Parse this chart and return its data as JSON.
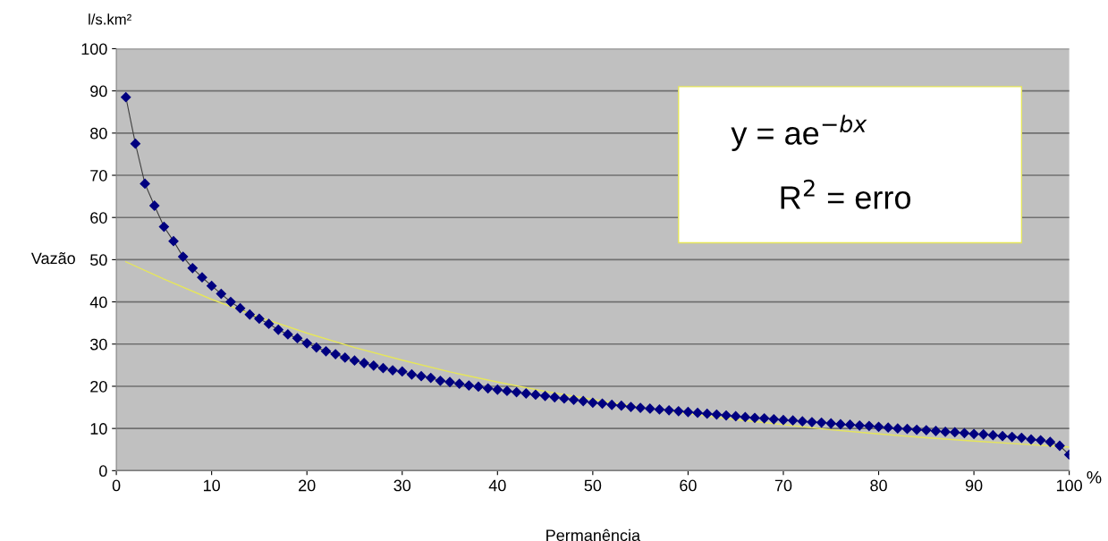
{
  "chart_data": {
    "type": "line",
    "ylabel": "Vazão",
    "xlabel": "Permanência",
    "annotations": [
      "l/s.km²",
      "%",
      "y = ae$^{−bx}$",
      "R$^{2}$ = erro"
    ],
    "xlim": [
      0,
      100
    ],
    "ylim": [
      0,
      100
    ],
    "xticks": [
      0,
      10,
      20,
      30,
      40,
      50,
      60,
      70,
      80,
      90,
      100
    ],
    "yticks": [
      0,
      10,
      20,
      30,
      40,
      50,
      60,
      70,
      80,
      90,
      100
    ],
    "grid": "y",
    "legend": false,
    "marker": "diamond",
    "line_style": "solid",
    "series": [
      {
        "color": "#000080",
        "x": [
          1,
          2,
          3,
          4,
          5,
          6,
          7,
          8,
          9,
          10,
          11,
          12,
          13,
          14,
          15,
          16,
          17,
          18,
          19,
          20,
          21,
          22,
          23,
          24,
          25,
          26,
          27,
          28,
          29,
          30,
          31,
          32,
          33,
          34,
          35,
          36,
          37,
          38,
          39,
          40,
          41,
          42,
          43,
          44,
          45,
          46,
          47,
          48,
          49,
          50,
          51,
          52,
          53,
          54,
          55,
          56,
          57,
          58,
          59,
          60,
          61,
          62,
          63,
          64,
          65,
          66,
          67,
          68,
          69,
          70,
          71,
          72,
          73,
          74,
          75,
          76,
          77,
          78,
          79,
          80,
          81,
          82,
          83,
          84,
          85,
          86,
          87,
          88,
          89,
          90,
          91,
          92,
          93,
          94,
          95,
          96,
          97,
          98,
          99,
          100
        ],
        "values": [
          88.5,
          77.5,
          68,
          62.8,
          57.8,
          54.4,
          50.7,
          48,
          45.8,
          43.8,
          41.9,
          40,
          38.5,
          37,
          36,
          34.8,
          33.4,
          32.3,
          31.4,
          30.2,
          29.2,
          28.3,
          27.6,
          26.8,
          26.1,
          25.5,
          24.9,
          24.3,
          23.8,
          23.5,
          22.8,
          22.4,
          22.0,
          21.3,
          21.0,
          20.6,
          20.2,
          19.9,
          19.5,
          19.2,
          18.9,
          18.6,
          18.3,
          18.0,
          17.7,
          17.4,
          17.1,
          16.8,
          16.5,
          16.1,
          15.9,
          15.6,
          15.4,
          15.1,
          14.9,
          14.7,
          14.5,
          14.3,
          14.1,
          13.9,
          13.7,
          13.5,
          13.3,
          13.1,
          12.9,
          12.7,
          12.5,
          12.4,
          12.2,
          12.0,
          11.9,
          11.7,
          11.5,
          11.4,
          11.2,
          11.0,
          10.9,
          10.7,
          10.6,
          10.4,
          10.2,
          10.0,
          9.9,
          9.7,
          9.6,
          9.4,
          9.2,
          9.1,
          8.9,
          8.7,
          8.6,
          8.4,
          8.2,
          8.0,
          7.8,
          7.4,
          7.2,
          6.8,
          5.9,
          3.8
        ]
      },
      {
        "type": "line",
        "marker": "none",
        "color": "#e6e65a",
        "x": [
          1,
          5,
          10,
          15,
          20,
          25,
          30,
          35,
          40,
          45,
          50,
          55,
          60,
          65,
          70,
          75,
          80,
          85,
          90,
          95,
          100
        ],
        "values": [
          49.5,
          45.4,
          40.6,
          36.4,
          32.6,
          29.2,
          26.2,
          23.4,
          21.0,
          18.8,
          16.9,
          15.1,
          13.5,
          12.1,
          10.9,
          9.7,
          8.7,
          7.8,
          7.0,
          6.3,
          5.6
        ]
      }
    ]
  }
}
